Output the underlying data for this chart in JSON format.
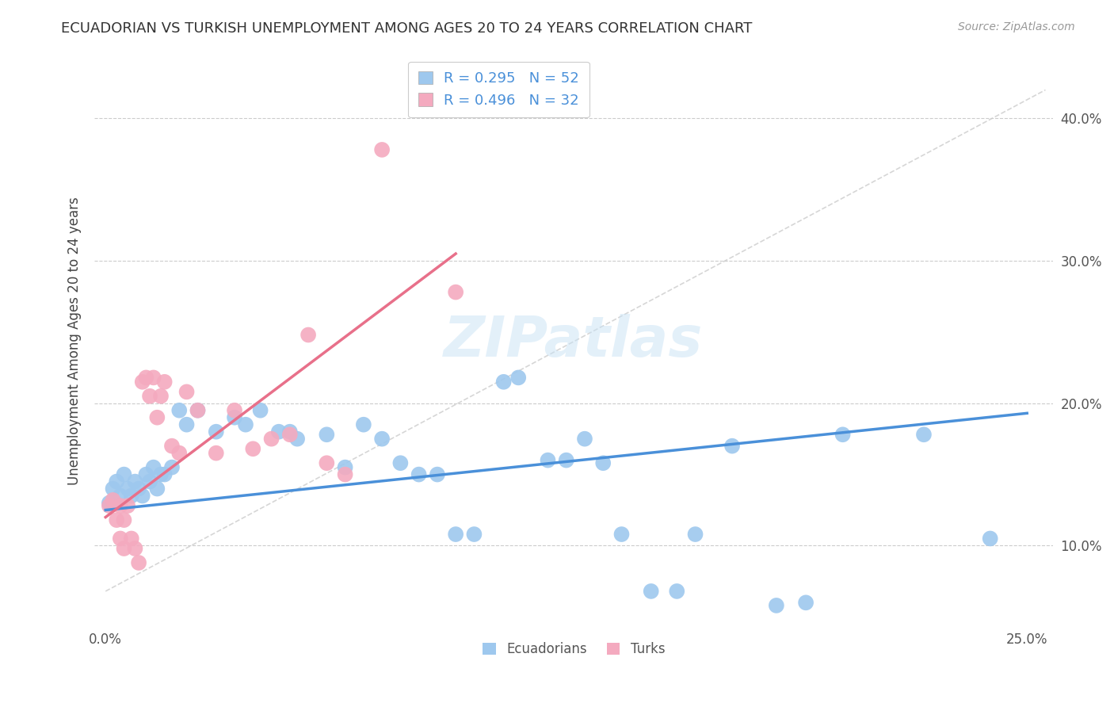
{
  "title": "ECUADORIAN VS TURKISH UNEMPLOYMENT AMONG AGES 20 TO 24 YEARS CORRELATION CHART",
  "source": "Source: ZipAtlas.com",
  "ylabel": "Unemployment Among Ages 20 to 24 years",
  "blue_color": "#9EC8EE",
  "pink_color": "#F4AABF",
  "blue_line_color": "#4A90D9",
  "pink_line_color": "#E8708A",
  "diagonal_color": "#CCCCCC",
  "legend_R1": "R = 0.295",
  "legend_N1": "N = 52",
  "legend_R2": "R = 0.496",
  "legend_N2": "N = 32",
  "legend_label1": "Ecuadorians",
  "legend_label2": "Turks",
  "watermark": "ZIPatlas",
  "blue_x": [
    0.001,
    0.002,
    0.003,
    0.004,
    0.005,
    0.006,
    0.007,
    0.008,
    0.009,
    0.01,
    0.011,
    0.012,
    0.013,
    0.014,
    0.015,
    0.016,
    0.018,
    0.02,
    0.022,
    0.025,
    0.03,
    0.035,
    0.038,
    0.042,
    0.047,
    0.05,
    0.052,
    0.06,
    0.065,
    0.07,
    0.075,
    0.08,
    0.085,
    0.09,
    0.095,
    0.1,
    0.108,
    0.112,
    0.12,
    0.125,
    0.13,
    0.135,
    0.14,
    0.148,
    0.155,
    0.16,
    0.17,
    0.182,
    0.19,
    0.2,
    0.222,
    0.24
  ],
  "blue_y": [
    0.13,
    0.14,
    0.145,
    0.135,
    0.15,
    0.14,
    0.135,
    0.145,
    0.14,
    0.135,
    0.15,
    0.145,
    0.155,
    0.14,
    0.15,
    0.15,
    0.155,
    0.195,
    0.185,
    0.195,
    0.18,
    0.19,
    0.185,
    0.195,
    0.18,
    0.18,
    0.175,
    0.178,
    0.155,
    0.185,
    0.175,
    0.158,
    0.15,
    0.15,
    0.108,
    0.108,
    0.215,
    0.218,
    0.16,
    0.16,
    0.175,
    0.158,
    0.108,
    0.068,
    0.068,
    0.108,
    0.17,
    0.058,
    0.06,
    0.178,
    0.178,
    0.105
  ],
  "pink_x": [
    0.001,
    0.002,
    0.003,
    0.004,
    0.004,
    0.005,
    0.005,
    0.006,
    0.007,
    0.008,
    0.009,
    0.01,
    0.011,
    0.012,
    0.013,
    0.014,
    0.015,
    0.016,
    0.018,
    0.02,
    0.022,
    0.025,
    0.03,
    0.035,
    0.04,
    0.045,
    0.05,
    0.055,
    0.06,
    0.065,
    0.075,
    0.095
  ],
  "pink_y": [
    0.128,
    0.132,
    0.118,
    0.105,
    0.128,
    0.118,
    0.098,
    0.128,
    0.105,
    0.098,
    0.088,
    0.215,
    0.218,
    0.205,
    0.218,
    0.19,
    0.205,
    0.215,
    0.17,
    0.165,
    0.208,
    0.195,
    0.165,
    0.195,
    0.168,
    0.175,
    0.178,
    0.248,
    0.158,
    0.15,
    0.378,
    0.278
  ],
  "blue_line": [
    0.0,
    0.25,
    0.125,
    0.193
  ],
  "pink_line": [
    0.0,
    0.095,
    0.12,
    0.305
  ]
}
